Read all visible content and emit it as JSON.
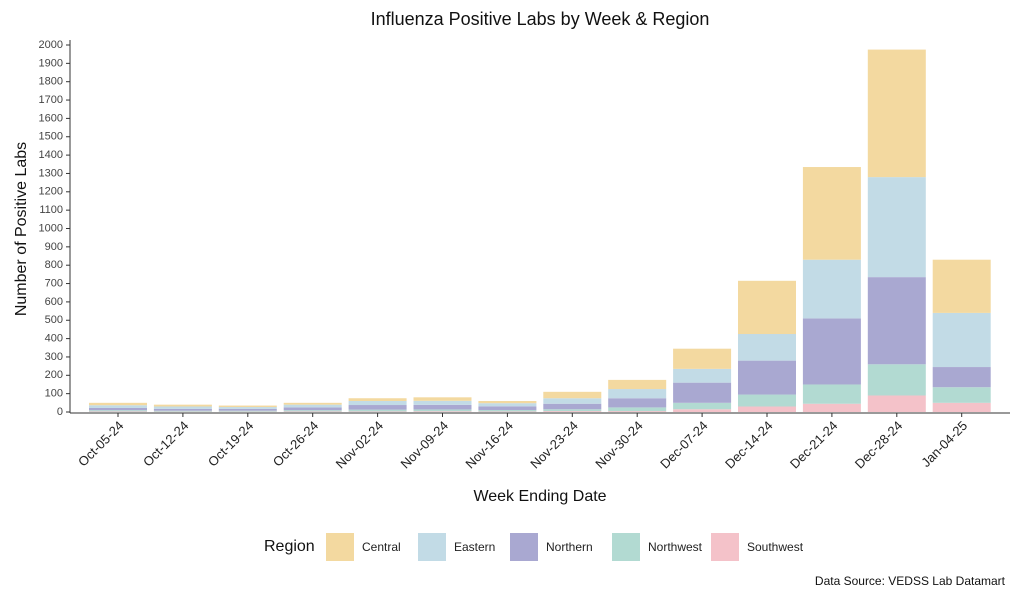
{
  "chart_data": {
    "type": "stacked_bar",
    "title": "Influenza Positive Labs by Week & Region",
    "x_label": "Week Ending Date",
    "y_label": "Number of Positive Labs",
    "legend_title": "Region",
    "source": "Data Source: VEDSS Lab Datamart",
    "categories": [
      "Oct-05-24",
      "Oct-12-24",
      "Oct-19-24",
      "Oct-26-24",
      "Nov-02-24",
      "Nov-09-24",
      "Nov-16-24",
      "Nov-23-24",
      "Nov-30-24",
      "Dec-07-24",
      "Dec-14-24",
      "Dec-21-24",
      "Dec-28-24",
      "Jan-04-25"
    ],
    "series": [
      {
        "name": "Southwest",
        "color": "#f4c2c9",
        "values": [
          3,
          2,
          2,
          3,
          3,
          4,
          3,
          5,
          5,
          15,
          30,
          45,
          90,
          50
        ]
      },
      {
        "name": "Northwest",
        "color": "#b2dad2",
        "values": [
          7,
          5,
          5,
          7,
          10,
          10,
          8,
          10,
          20,
          35,
          65,
          105,
          170,
          85
        ]
      },
      {
        "name": "Northern",
        "color": "#a9a8d1",
        "values": [
          12,
          10,
          10,
          15,
          25,
          25,
          20,
          30,
          50,
          110,
          185,
          360,
          475,
          110
        ]
      },
      {
        "name": "Eastern",
        "color": "#c2dbe6",
        "values": [
          15,
          13,
          10,
          15,
          22,
          22,
          17,
          30,
          50,
          75,
          145,
          320,
          545,
          295
        ]
      },
      {
        "name": "Central",
        "color": "#f3d9a0",
        "values": [
          13,
          10,
          8,
          10,
          15,
          19,
          12,
          35,
          50,
          110,
          290,
          505,
          695,
          290
        ]
      }
    ],
    "legend_order": [
      4,
      3,
      2,
      1,
      0
    ],
    "ylim": [
      0,
      2000
    ],
    "yticks": [
      0,
      100,
      200,
      300,
      400,
      500,
      600,
      700,
      800,
      900,
      1000,
      1100,
      1200,
      1300,
      1400,
      1500,
      1600,
      1700,
      1800,
      1900,
      2000
    ]
  }
}
